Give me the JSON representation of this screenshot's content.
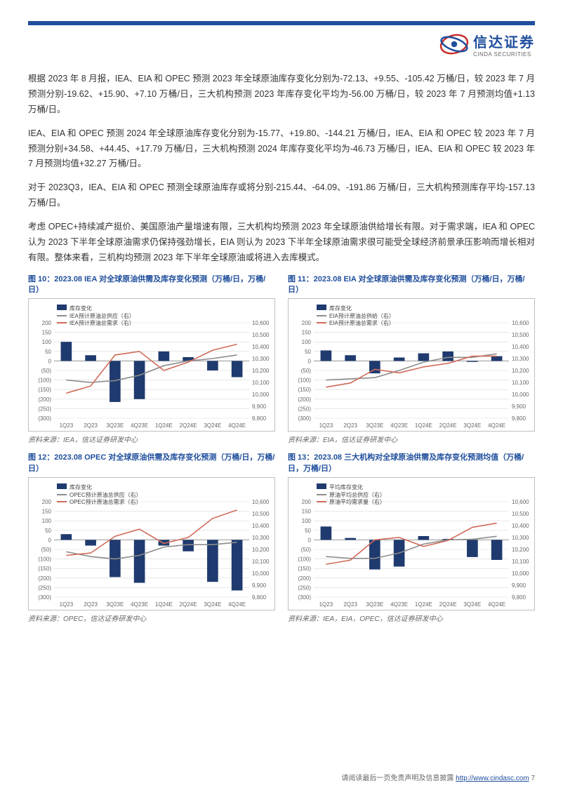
{
  "brand": {
    "cn": "信达证券",
    "en": "CINDA SECURITIES"
  },
  "paragraphs": [
    "根据 2023 年 8 月报，IEA、EIA 和 OPEC 预测 2023 年全球原油库存变化分别为-72.13、+9.55、-105.42 万桶/日，较 2023 年 7 月预测分别-19.62、+15.90、+7.10 万桶/日，三大机构预测 2023 年库存变化平均为-56.00 万桶/日，较 2023 年 7 月预测均值+1.13 万桶/日。",
    "IEA、EIA 和 OPEC 预测 2024 年全球原油库存变化分别为-15.77、+19.80、-144.21 万桶/日，IEA、EIA 和 OPEC 较 2023 年 7 月预测分别+34.58、+44.45、+17.79 万桶/日，三大机构预测 2024 年库存变化平均为-46.73 万桶/日，IEA、EIA 和 OPEC 较 2023 年 7 月预测均值+32.27 万桶/日。",
    "对于 2023Q3，IEA、EIA 和 OPEC 预测全球原油库存或将分别-215.44、-64.09、-191.86 万桶/日，三大机构预测库存平均-157.13 万桶/日。",
    "考虑 OPEC+持续减产挺价、美国原油产量增速有限，三大机构均预测 2023 年全球原油供给增长有限。对于需求端，IEA 和 OPEC 认为 2023 下半年全球原油需求仍保持强劲增长，EIA 则认为 2023 下半年全球原油需求很可能受全球经济前景承压影响而增长相对有限。整体来看，三机构均预测 2023 年下半年全球原油或将进入去库模式。"
  ],
  "chart_common": {
    "categories": [
      "1Q23",
      "2Q23",
      "3Q23E",
      "4Q23E",
      "1Q24E",
      "2Q24E",
      "3Q24E",
      "4Q24E"
    ],
    "y_left_min": -300,
    "y_left_max": 200,
    "y_left_step": 50,
    "y_right_min": 9800,
    "y_right_max": 10600,
    "y_right_step": 100,
    "bar_color": "#1f3a6e",
    "supply_color": "#8c8c8c",
    "demand_color": "#d16b5a",
    "grid_color": "#d9d9d9",
    "axis_font": 8,
    "legend_font": 8
  },
  "charts": [
    {
      "id": "chart10",
      "title": "图 10：2023.08 IEA 对全球原油供需及库存变化预测（万桶/日，万桶/日）",
      "legend": [
        "库存变化",
        "IEA预计原油总供应（右）",
        "IEA预计原油总需求（右）"
      ],
      "bars": [
        100,
        30,
        -215,
        -200,
        50,
        20,
        -50,
        -85
      ],
      "supply": [
        10120,
        10100,
        10115,
        10160,
        10240,
        10280,
        10300,
        10330
      ],
      "demand": [
        10010,
        10070,
        10330,
        10360,
        10200,
        10270,
        10370,
        10420
      ],
      "source": "资料来源：IEA，信达证券研发中心"
    },
    {
      "id": "chart11",
      "title": "图 11：2023.08 EIA 对全球原油供需及库存变化预测（万桶/日，万桶/日）",
      "legend": [
        "库存变化",
        "EIA预计原油总供给（右）",
        "EIA预计原油总需求（右）"
      ],
      "bars": [
        55,
        30,
        -65,
        18,
        40,
        50,
        -5,
        25
      ],
      "supply": [
        10120,
        10130,
        10140,
        10200,
        10270,
        10310,
        10310,
        10340
      ],
      "demand": [
        10060,
        10095,
        10210,
        10180,
        10230,
        10260,
        10320,
        10320
      ],
      "source": "资料来源：EIA，信达证券研发中心"
    },
    {
      "id": "chart12",
      "title": "图 12：2023.08 OPEC 对全球原油供需及库存变化预测（万桶/日，万桶/日）",
      "legend": [
        "库存变化",
        "OPEC预计原油总供应（右）",
        "OPEC预计原油总需求（右）"
      ],
      "bars": [
        30,
        -30,
        -195,
        -225,
        -30,
        -60,
        -220,
        -265
      ],
      "supply": [
        10180,
        10140,
        10120,
        10150,
        10220,
        10240,
        10240,
        10260
      ],
      "demand": [
        10150,
        10170,
        10310,
        10370,
        10250,
        10300,
        10460,
        10530
      ],
      "source": "资料来源：OPEC，信达证券研发中心"
    },
    {
      "id": "chart13",
      "title": "图 13：2023.08 三大机构对全球原油供需及库存变化预测均值（万桶/日，万桶/日）",
      "legend": [
        "平均库存变化",
        "原油平均总供应（右）",
        "原油平均需求量（右）"
      ],
      "bars": [
        70,
        10,
        -155,
        -140,
        20,
        5,
        -90,
        -105
      ],
      "supply": [
        10140,
        10125,
        10125,
        10170,
        10245,
        10280,
        10285,
        10310
      ],
      "demand": [
        10075,
        10110,
        10280,
        10300,
        10225,
        10275,
        10385,
        10420
      ],
      "source": "资料来源：IEA，EIA，OPEC，信达证券研发中心"
    }
  ],
  "footer": {
    "text_prefix": "请阅读最后一页免责声明及信息披露 ",
    "url": "http://www.cindasc.com",
    "page": " 7"
  }
}
